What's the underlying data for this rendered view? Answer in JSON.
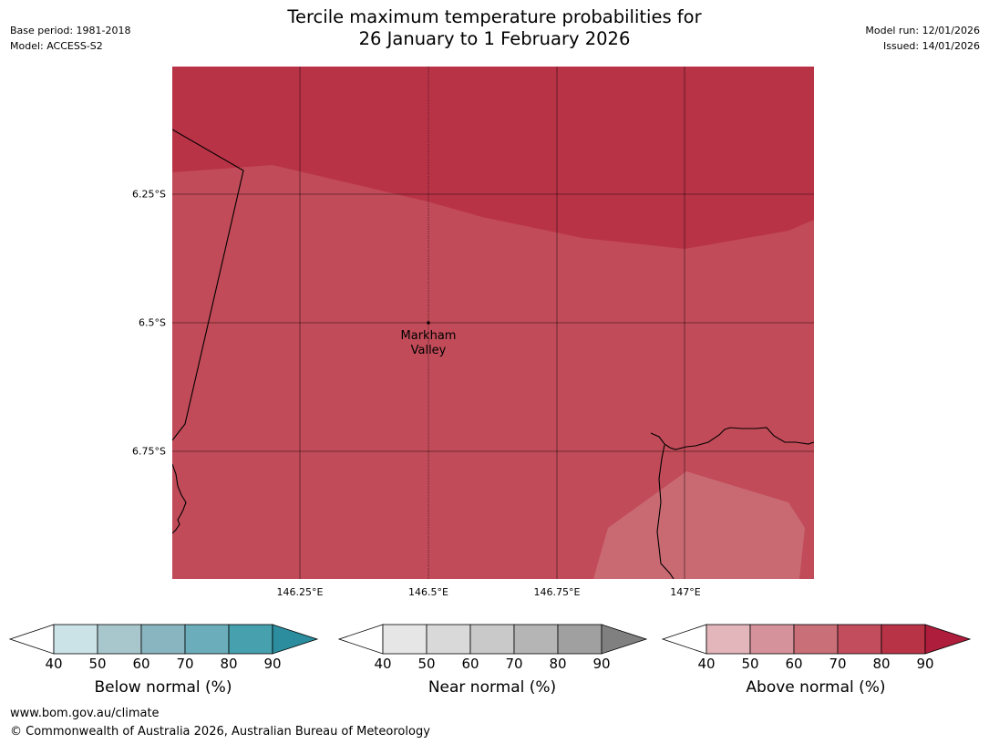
{
  "title": {
    "line1": "Tercile maximum temperature probabilities for",
    "line2": "26 January to 1 February 2026"
  },
  "meta": {
    "base_period": "Base period: 1981-2018",
    "model": "Model: ACCESS-S2",
    "model_run": "Model run: 12/01/2026",
    "issued": "Issued: 14/01/2026"
  },
  "map": {
    "latitudes": [
      "6.25°S",
      "6.5°S",
      "6.75°S"
    ],
    "longitudes": [
      "146.25°E",
      "146.5°E",
      "146.75°E",
      "147°E"
    ],
    "place_name_line1": "Markham",
    "place_name_line2": "Valley",
    "colors": {
      "above_80": "#b93347",
      "above_70": "#c14b58",
      "above_60": "#c96a73"
    }
  },
  "colorbars": {
    "ticks": [
      "40",
      "50",
      "60",
      "70",
      "80",
      "90"
    ],
    "below": {
      "label": "Below normal (%)",
      "colors": [
        "#cbe2e6",
        "#a8c7cd",
        "#89b5c0",
        "#6badba",
        "#47a0ae",
        "#2b8d9e"
      ]
    },
    "near": {
      "label": "Near normal (%)",
      "colors": [
        "#e6e6e6",
        "#d9d9d9",
        "#c9c9c9",
        "#b5b5b5",
        "#a0a0a0",
        "#808080"
      ]
    },
    "above": {
      "label": "Above normal (%)",
      "colors": [
        "#e2b6bb",
        "#d5929a",
        "#c96f78",
        "#c14d5d",
        "#b93347",
        "#ae1d3b"
      ]
    }
  },
  "footer": {
    "url": "www.bom.gov.au/climate",
    "copyright": "© Commonwealth of Australia 2026, Australian Bureau of Meteorology"
  }
}
